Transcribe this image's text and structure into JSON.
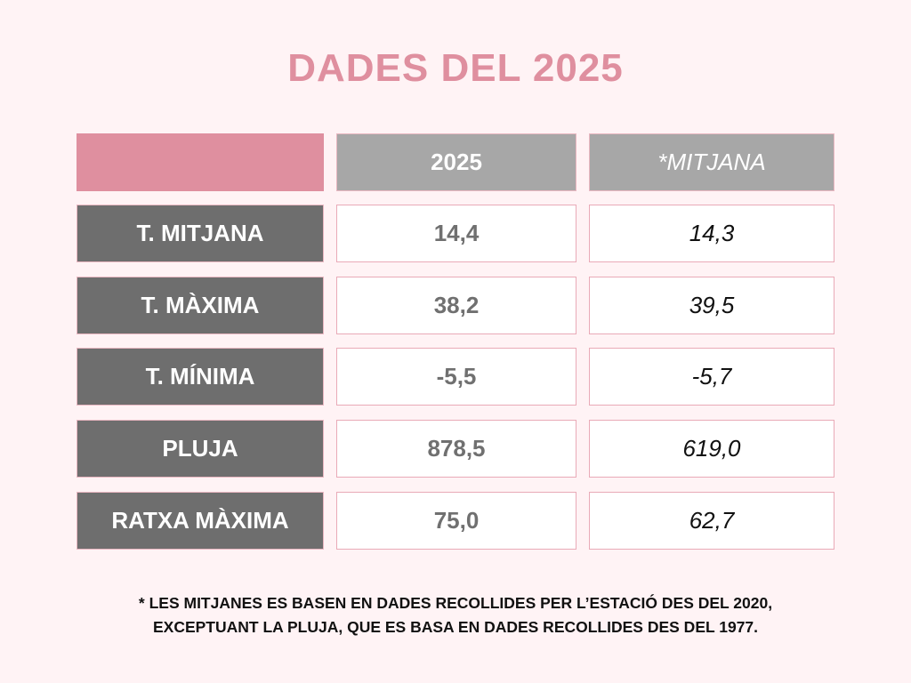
{
  "chart_data": {
    "type": "table",
    "title": "DADES DEL 2025",
    "columns": [
      "2025",
      "*MITJANA"
    ],
    "rows": [
      {
        "label": "T. MITJANA",
        "year": "14,4",
        "avg": "14,3"
      },
      {
        "label": "T. MÀXIMA",
        "year": "38,2",
        "avg": "39,5"
      },
      {
        "label": "T. MÍNIMA",
        "year": "-5,5",
        "avg": "-5,7"
      },
      {
        "label": "PLUJA",
        "year": "878,5",
        "avg": "619,0"
      },
      {
        "label": "RATXA MÀXIMA",
        "year": "75,0",
        "avg": "62,7"
      }
    ],
    "footnote": [
      "* LES MITJANES ES BASEN EN DADES RECOLLIDES PER L’ESTACIÓ DES DEL 2020,",
      "EXCEPTUANT LA PLUJA, QUE ES BASA EN DADES RECOLLIDES DES DEL 1977."
    ]
  },
  "colors": {
    "background": "#fff3f5",
    "accent_pink": "#df8f9f",
    "header_gray": "#a7a7a7",
    "label_gray": "#6e6e6e"
  }
}
